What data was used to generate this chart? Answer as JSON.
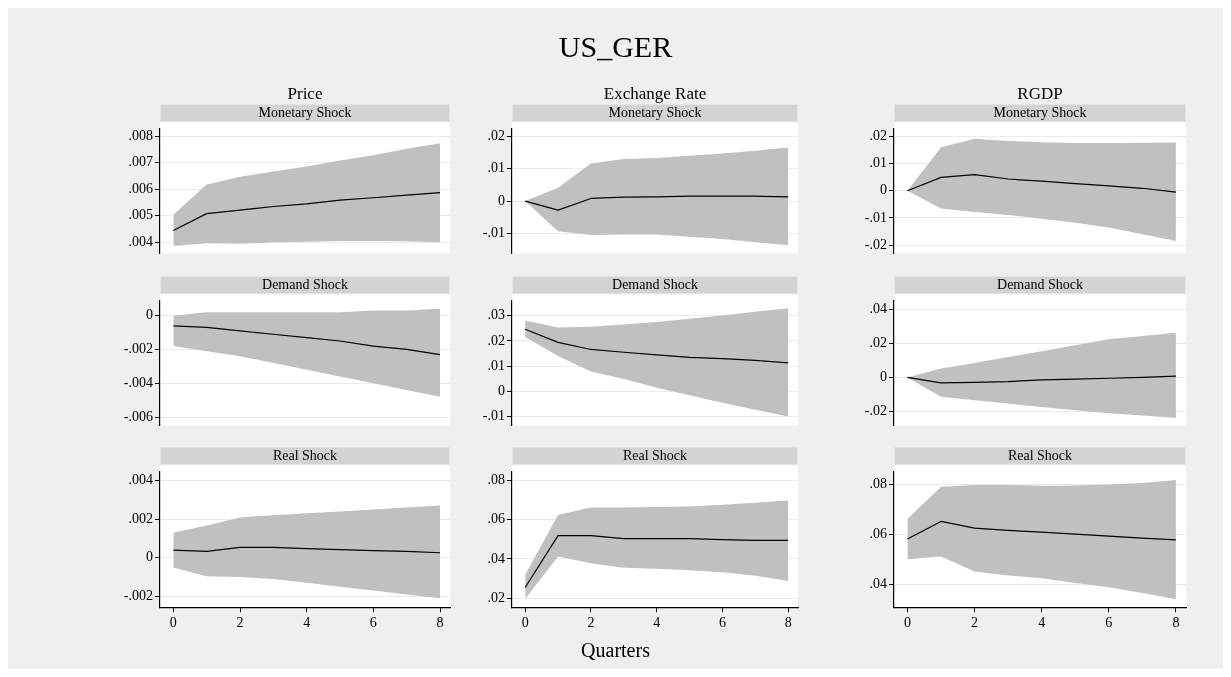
{
  "chart_data": [
    {
      "type": "line",
      "title": "Price",
      "subtitle": "Monetary Shock",
      "annotations": [
        "US_GER"
      ],
      "x": [
        0,
        1,
        2,
        3,
        4,
        5,
        6,
        7,
        8
      ],
      "xlim": [
        -0.4,
        8.3
      ],
      "xticks": [
        0,
        2,
        4,
        6,
        8
      ],
      "ylim": [
        0.00357,
        0.0083
      ],
      "yticks": [
        {
          "value": 0.004,
          "label": ".004"
        },
        {
          "value": 0.005,
          "label": ".005"
        },
        {
          "value": 0.006,
          "label": ".006"
        },
        {
          "value": 0.007,
          "label": ".007"
        },
        {
          "value": 0.008,
          "label": ".008"
        }
      ],
      "tick_labels": "y",
      "grid": "y",
      "legend": false,
      "series": [
        {
          "color": "#000000",
          "values": [
            0.00444,
            0.00508,
            0.00521,
            0.00535,
            0.00545,
            0.00559,
            0.00568,
            0.00578,
            0.00587
          ],
          "lower": [
            0.00386,
            0.00396,
            0.00394,
            0.004,
            0.00402,
            0.00405,
            0.00405,
            0.00404,
            0.004
          ],
          "upper": [
            0.00504,
            0.00618,
            0.00647,
            0.00667,
            0.00686,
            0.00709,
            0.00729,
            0.00753,
            0.00774
          ]
        }
      ]
    },
    {
      "type": "line",
      "title": "Exchange Rate",
      "subtitle": "Monetary Shock",
      "x": [
        0,
        1,
        2,
        3,
        4,
        5,
        6,
        7,
        8
      ],
      "xlim": [
        -0.4,
        8.3
      ],
      "xticks": [
        0,
        2,
        4,
        6,
        8
      ],
      "ylim": [
        -0.0162,
        0.0224
      ],
      "yticks": [
        {
          "value": -0.01,
          "label": "-.01"
        },
        {
          "value": 0,
          "label": "0"
        },
        {
          "value": 0.01,
          "label": ".01"
        },
        {
          "value": 0.02,
          "label": ".02"
        }
      ],
      "tick_labels": "y",
      "grid": "y",
      "legend": false,
      "series": [
        {
          "color": "#000000",
          "values": [
            0,
            -0.0028,
            0.0008,
            0.0012,
            0.0013,
            0.0015,
            0.0015,
            0.0015,
            0.0013
          ],
          "lower": [
            0,
            -0.0093,
            -0.0105,
            -0.0103,
            -0.0103,
            -0.011,
            -0.0117,
            -0.0127,
            -0.0136
          ],
          "upper": [
            0,
            0.0041,
            0.0116,
            0.013,
            0.0133,
            0.014,
            0.0147,
            0.0155,
            0.0165
          ]
        }
      ]
    },
    {
      "type": "line",
      "title": "RGDP",
      "subtitle": "Monetary Shock",
      "x": [
        0,
        1,
        2,
        3,
        4,
        5,
        6,
        7,
        8
      ],
      "xlim": [
        -0.4,
        8.3
      ],
      "xticks": [
        0,
        2,
        4,
        6,
        8
      ],
      "ylim": [
        -0.0231,
        0.0229
      ],
      "yticks": [
        {
          "value": -0.02,
          "label": "-.02"
        },
        {
          "value": -0.01,
          "label": "-.01"
        },
        {
          "value": 0,
          "label": "0"
        },
        {
          "value": 0.01,
          "label": ".01"
        },
        {
          "value": 0.02,
          "label": ".02"
        }
      ],
      "tick_labels": "y",
      "grid": "y",
      "legend": false,
      "series": [
        {
          "color": "#000000",
          "values": [
            0,
            0.0049,
            0.0059,
            0.0043,
            0.0035,
            0.0026,
            0.0018,
            0.0009,
            -0.0005
          ],
          "lower": [
            0,
            -0.0065,
            -0.0078,
            -0.0089,
            -0.0103,
            -0.0118,
            -0.0135,
            -0.016,
            -0.0185
          ],
          "upper": [
            0,
            0.016,
            0.0191,
            0.0183,
            0.0178,
            0.0175,
            0.0175,
            0.0176,
            0.0177
          ]
        }
      ]
    },
    {
      "type": "line",
      "subtitle": "Demand Shock",
      "x": [
        0,
        1,
        2,
        3,
        4,
        5,
        6,
        7,
        8
      ],
      "xlim": [
        -0.4,
        8.3
      ],
      "xticks": [
        0,
        2,
        4,
        6,
        8
      ],
      "ylim": [
        -0.0065,
        0.0009
      ],
      "yticks": [
        {
          "value": -0.006,
          "label": "-.006"
        },
        {
          "value": -0.004,
          "label": "-.004"
        },
        {
          "value": -0.002,
          "label": "-.002"
        },
        {
          "value": 0,
          "label": "0"
        }
      ],
      "tick_labels": "y",
      "grid": "y",
      "legend": false,
      "series": [
        {
          "color": "#000000",
          "values": [
            -0.0006,
            -0.0007,
            -0.0009,
            -0.0011,
            -0.0013,
            -0.0015,
            -0.0018,
            -0.002,
            -0.0023
          ],
          "lower": [
            -0.0018,
            -0.0021,
            -0.0024,
            -0.0028,
            -0.0032,
            -0.0036,
            -0.004,
            -0.0044,
            -0.0048
          ],
          "upper": [
            0,
            0.0002,
            0.0002,
            0.0002,
            0.0002,
            0.0002,
            0.0003,
            0.0003,
            0.0004
          ]
        }
      ]
    },
    {
      "type": "line",
      "subtitle": "Demand Shock",
      "x": [
        0,
        1,
        2,
        3,
        4,
        5,
        6,
        7,
        8
      ],
      "xlim": [
        -0.4,
        8.3
      ],
      "xticks": [
        0,
        2,
        4,
        6,
        8
      ],
      "ylim": [
        -0.0135,
        0.036
      ],
      "yticks": [
        {
          "value": -0.01,
          "label": "-.01"
        },
        {
          "value": 0,
          "label": "0"
        },
        {
          "value": 0.01,
          "label": ".01"
        },
        {
          "value": 0.02,
          "label": ".02"
        },
        {
          "value": 0.03,
          "label": ".03"
        }
      ],
      "tick_labels": "y",
      "grid": "y",
      "legend": false,
      "series": [
        {
          "color": "#000000",
          "values": [
            0.0246,
            0.0194,
            0.0166,
            0.0155,
            0.0145,
            0.0135,
            0.013,
            0.0123,
            0.0113
          ],
          "lower": [
            0.0215,
            0.014,
            0.0079,
            0.0049,
            0.0015,
            -0.0015,
            -0.0045,
            -0.0072,
            -0.0099
          ],
          "upper": [
            0.0281,
            0.0253,
            0.0256,
            0.0265,
            0.0275,
            0.0287,
            0.03,
            0.0315,
            0.0329
          ]
        }
      ]
    },
    {
      "type": "line",
      "subtitle": "Demand Shock",
      "x": [
        0,
        1,
        2,
        3,
        4,
        5,
        6,
        7,
        8
      ],
      "xlim": [
        -0.4,
        8.3
      ],
      "xticks": [
        0,
        2,
        4,
        6,
        8
      ],
      "ylim": [
        -0.0285,
        0.0455
      ],
      "yticks": [
        {
          "value": -0.02,
          "label": "-.02"
        },
        {
          "value": 0,
          "label": "0"
        },
        {
          "value": 0.02,
          "label": ".02"
        },
        {
          "value": 0.04,
          "label": ".04"
        }
      ],
      "tick_labels": "y",
      "grid": "y",
      "legend": false,
      "series": [
        {
          "color": "#000000",
          "values": [
            0,
            -0.0033,
            -0.003,
            -0.0025,
            -0.0015,
            -0.001,
            -0.0005,
            0,
            0.0007
          ],
          "lower": [
            0,
            -0.0114,
            -0.0135,
            -0.0155,
            -0.0175,
            -0.0195,
            -0.0212,
            -0.0225,
            -0.024
          ],
          "upper": [
            0,
            0.0052,
            0.0085,
            0.012,
            0.0155,
            0.019,
            0.0225,
            0.0245,
            0.0264
          ]
        }
      ]
    },
    {
      "type": "line",
      "subtitle": "Real Shock",
      "x": [
        0,
        1,
        2,
        3,
        4,
        5,
        6,
        7,
        8
      ],
      "xlim": [
        -0.4,
        8.3
      ],
      "xticks": [
        0,
        2,
        4,
        6,
        8
      ],
      "ylim": [
        -0.00256,
        0.00447
      ],
      "yticks": [
        {
          "value": -0.002,
          "label": "-.002"
        },
        {
          "value": 0,
          "label": "0"
        },
        {
          "value": 0.002,
          "label": ".002"
        },
        {
          "value": 0.004,
          "label": ".004"
        }
      ],
      "grid": "y",
      "legend": false,
      "series": [
        {
          "color": "#000000",
          "values": [
            0.00039,
            0.00033,
            0.00054,
            0.00054,
            0.00047,
            0.00042,
            0.00037,
            0.00033,
            0.00026
          ],
          "lower": [
            -0.0005,
            -0.00096,
            -0.001,
            -0.0011,
            -0.0013,
            -0.0015,
            -0.0017,
            -0.0019,
            -0.0021
          ],
          "upper": [
            0.0013,
            0.00167,
            0.00209,
            0.0022,
            0.0023,
            0.0024,
            0.0025,
            0.0026,
            0.0027
          ]
        }
      ]
    },
    {
      "type": "line",
      "subtitle": "Real Shock",
      "xlabel": "Quarters",
      "x": [
        0,
        1,
        2,
        3,
        4,
        5,
        6,
        7,
        8
      ],
      "xlim": [
        -0.4,
        8.3
      ],
      "xticks": [
        0,
        2,
        4,
        6,
        8
      ],
      "ylim": [
        0.0155,
        0.0845
      ],
      "yticks": [
        {
          "value": 0.02,
          "label": ".02"
        },
        {
          "value": 0.04,
          "label": ".04"
        },
        {
          "value": 0.06,
          "label": ".06"
        },
        {
          "value": 0.08,
          "label": ".08"
        }
      ],
      "grid": "y",
      "legend": false,
      "series": [
        {
          "color": "#000000",
          "values": [
            0.0255,
            0.0519,
            0.0519,
            0.0503,
            0.0503,
            0.0503,
            0.0498,
            0.0495,
            0.0495
          ],
          "lower": [
            0.0197,
            0.0412,
            0.0378,
            0.0355,
            0.035,
            0.0343,
            0.0332,
            0.0315,
            0.0288
          ],
          "upper": [
            0.032,
            0.0624,
            0.0662,
            0.0662,
            0.0664,
            0.0667,
            0.0676,
            0.0686,
            0.0697
          ]
        }
      ]
    },
    {
      "type": "line",
      "subtitle": "Real Shock",
      "x": [
        0,
        1,
        2,
        3,
        4,
        5,
        6,
        7,
        8
      ],
      "xlim": [
        -0.4,
        8.3
      ],
      "xticks": [
        0,
        2,
        4,
        6,
        8
      ],
      "ylim": [
        0.031,
        0.0853
      ],
      "yticks": [
        {
          "value": 0.04,
          "label": ".04"
        },
        {
          "value": 0.06,
          "label": ".06"
        },
        {
          "value": 0.08,
          "label": ".08"
        }
      ],
      "grid": "y",
      "legend": false,
      "series": [
        {
          "color": "#000000",
          "values": [
            0.0583,
            0.0653,
            0.0626,
            0.0617,
            0.061,
            0.0602,
            0.0594,
            0.0586,
            0.0579
          ],
          "lower": [
            0.0502,
            0.0513,
            0.0453,
            0.0437,
            0.0426,
            0.0407,
            0.039,
            0.0367,
            0.0342
          ],
          "upper": [
            0.0663,
            0.0792,
            0.0799,
            0.0799,
            0.0796,
            0.0797,
            0.0801,
            0.0807,
            0.0819
          ]
        }
      ]
    }
  ]
}
